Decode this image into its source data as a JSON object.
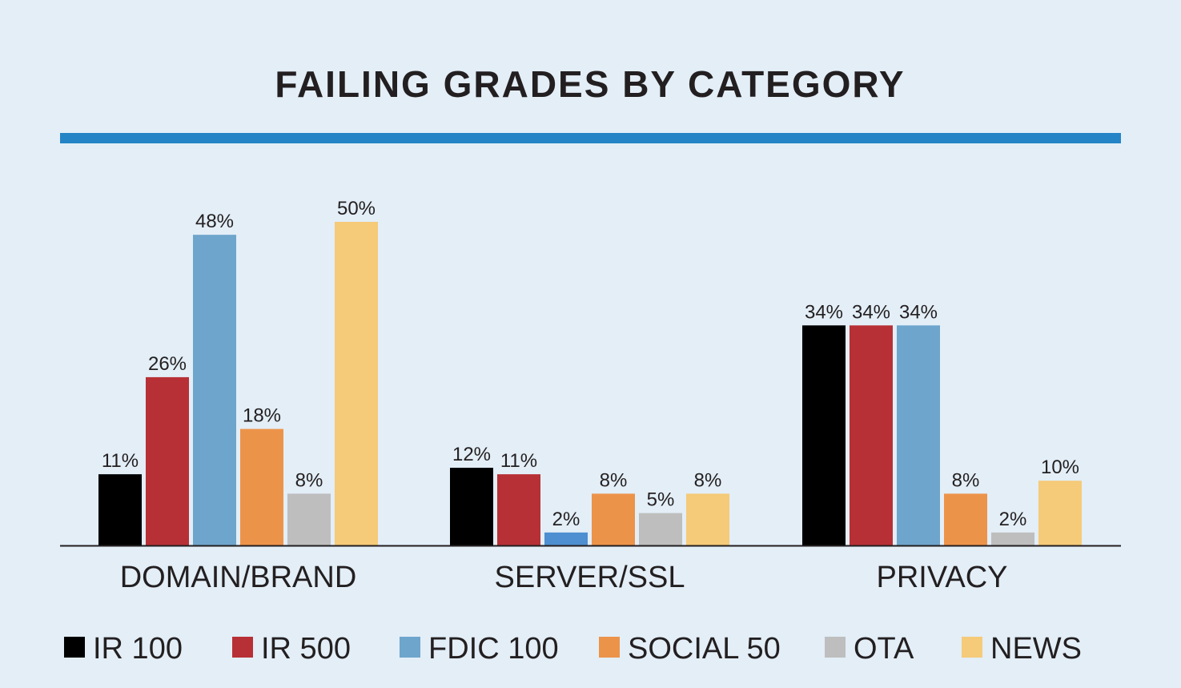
{
  "chart_data": {
    "type": "bar",
    "title": "FAILING GRADES BY CATEGORY",
    "xlabel": "",
    "ylabel": "",
    "ylim": [
      0,
      50
    ],
    "grid": false,
    "legend_position": "bottom",
    "categories": [
      "DOMAIN/BRAND",
      "SERVER/SSL",
      "PRIVACY"
    ],
    "series": [
      {
        "name": "IR 100",
        "color": "#000000",
        "values": [
          11,
          12,
          34
        ],
        "labels": [
          "11%",
          "12%",
          "34%"
        ]
      },
      {
        "name": "IR 500",
        "color": "#b73035",
        "values": [
          26,
          11,
          34
        ],
        "labels": [
          "26%",
          "11%",
          "34%"
        ]
      },
      {
        "name": "FDIC 100",
        "color": "#6ea5cc",
        "values": [
          48,
          2,
          34
        ],
        "labels": [
          "48%",
          "2%",
          "34%"
        ],
        "point_colors": [
          "#6ea5cc",
          "#4d8fd0",
          "#6ea5cc"
        ]
      },
      {
        "name": "SOCIAL 50",
        "color": "#ec934a",
        "values": [
          18,
          8,
          8
        ],
        "labels": [
          "18%",
          "8%",
          "8%"
        ]
      },
      {
        "name": "OTA",
        "color": "#bebebe",
        "values": [
          8,
          5,
          2
        ],
        "labels": [
          "8%",
          "5%",
          "2%"
        ]
      },
      {
        "name": "NEWS",
        "color": "#f5ca78",
        "values": [
          50,
          8,
          10
        ],
        "labels": [
          "50%",
          "8%",
          "10%"
        ]
      }
    ],
    "accent_rule_color": "#2584c6"
  }
}
